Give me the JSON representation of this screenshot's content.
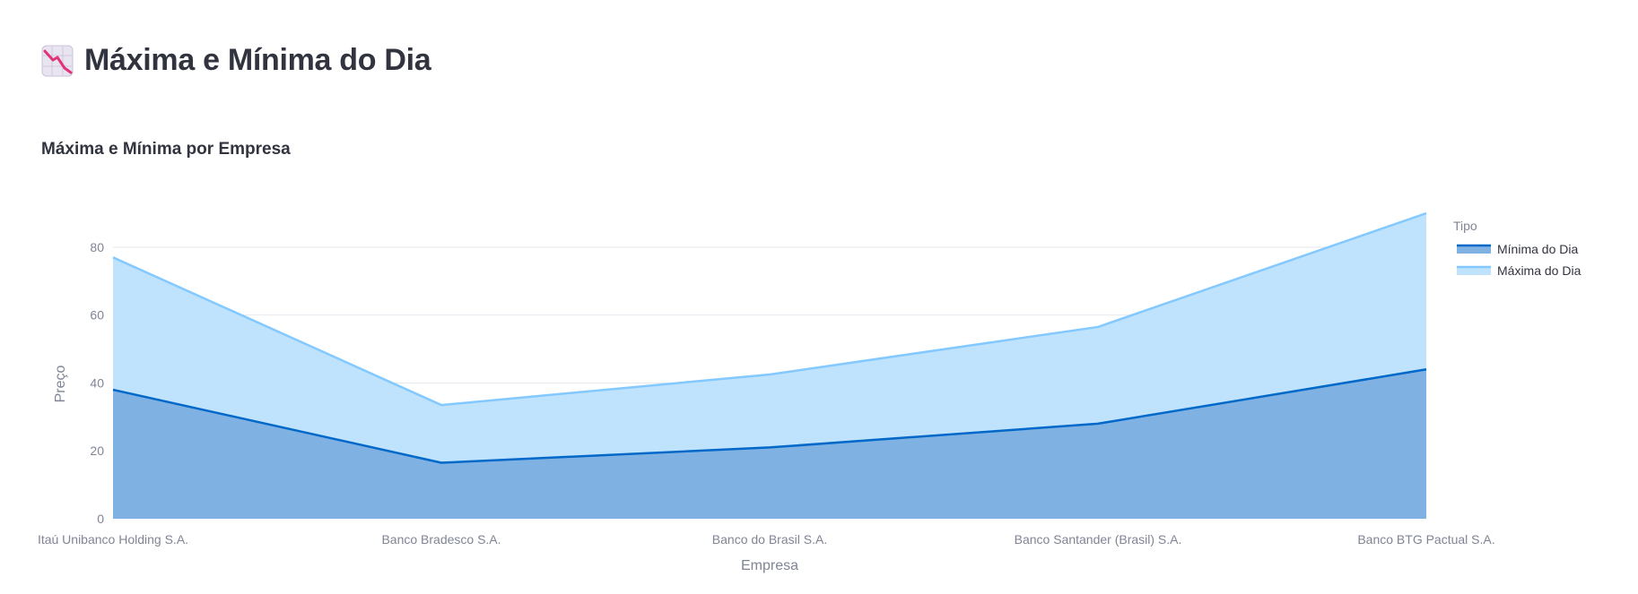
{
  "page": {
    "title": "Máxima e Mínima do Dia",
    "icon": "chart-decreasing-icon"
  },
  "colors": {
    "minima_line": "#0068c9",
    "minima_fill": "#7fb1e2",
    "maxima_line": "#83c9ff",
    "maxima_fill": "#bfe2fd",
    "grid": "#e6e9ef",
    "text_muted": "#808495",
    "text_dark": "#31333f"
  },
  "chart_data": {
    "type": "area",
    "title": "Máxima e Mínima por Empresa",
    "xlabel": "Empresa",
    "ylabel": "Preço",
    "categories": [
      "Itaú Unibanco Holding S.A.",
      "Banco Bradesco S.A.",
      "Banco do Brasil S.A.",
      "Banco Santander (Brasil) S.A.",
      "Banco BTG Pactual S.A."
    ],
    "series": [
      {
        "name": "Mínima do Dia",
        "values": [
          38,
          16.5,
          21,
          28,
          44
        ]
      },
      {
        "name": "Máxima do Dia",
        "values": [
          77,
          33.5,
          42.5,
          56.5,
          90
        ]
      }
    ],
    "ylim": [
      0,
      90
    ],
    "yticks": [
      0,
      20,
      40,
      60,
      80
    ],
    "grid": true,
    "legend": {
      "title": "Tipo",
      "position": "top-right"
    }
  }
}
